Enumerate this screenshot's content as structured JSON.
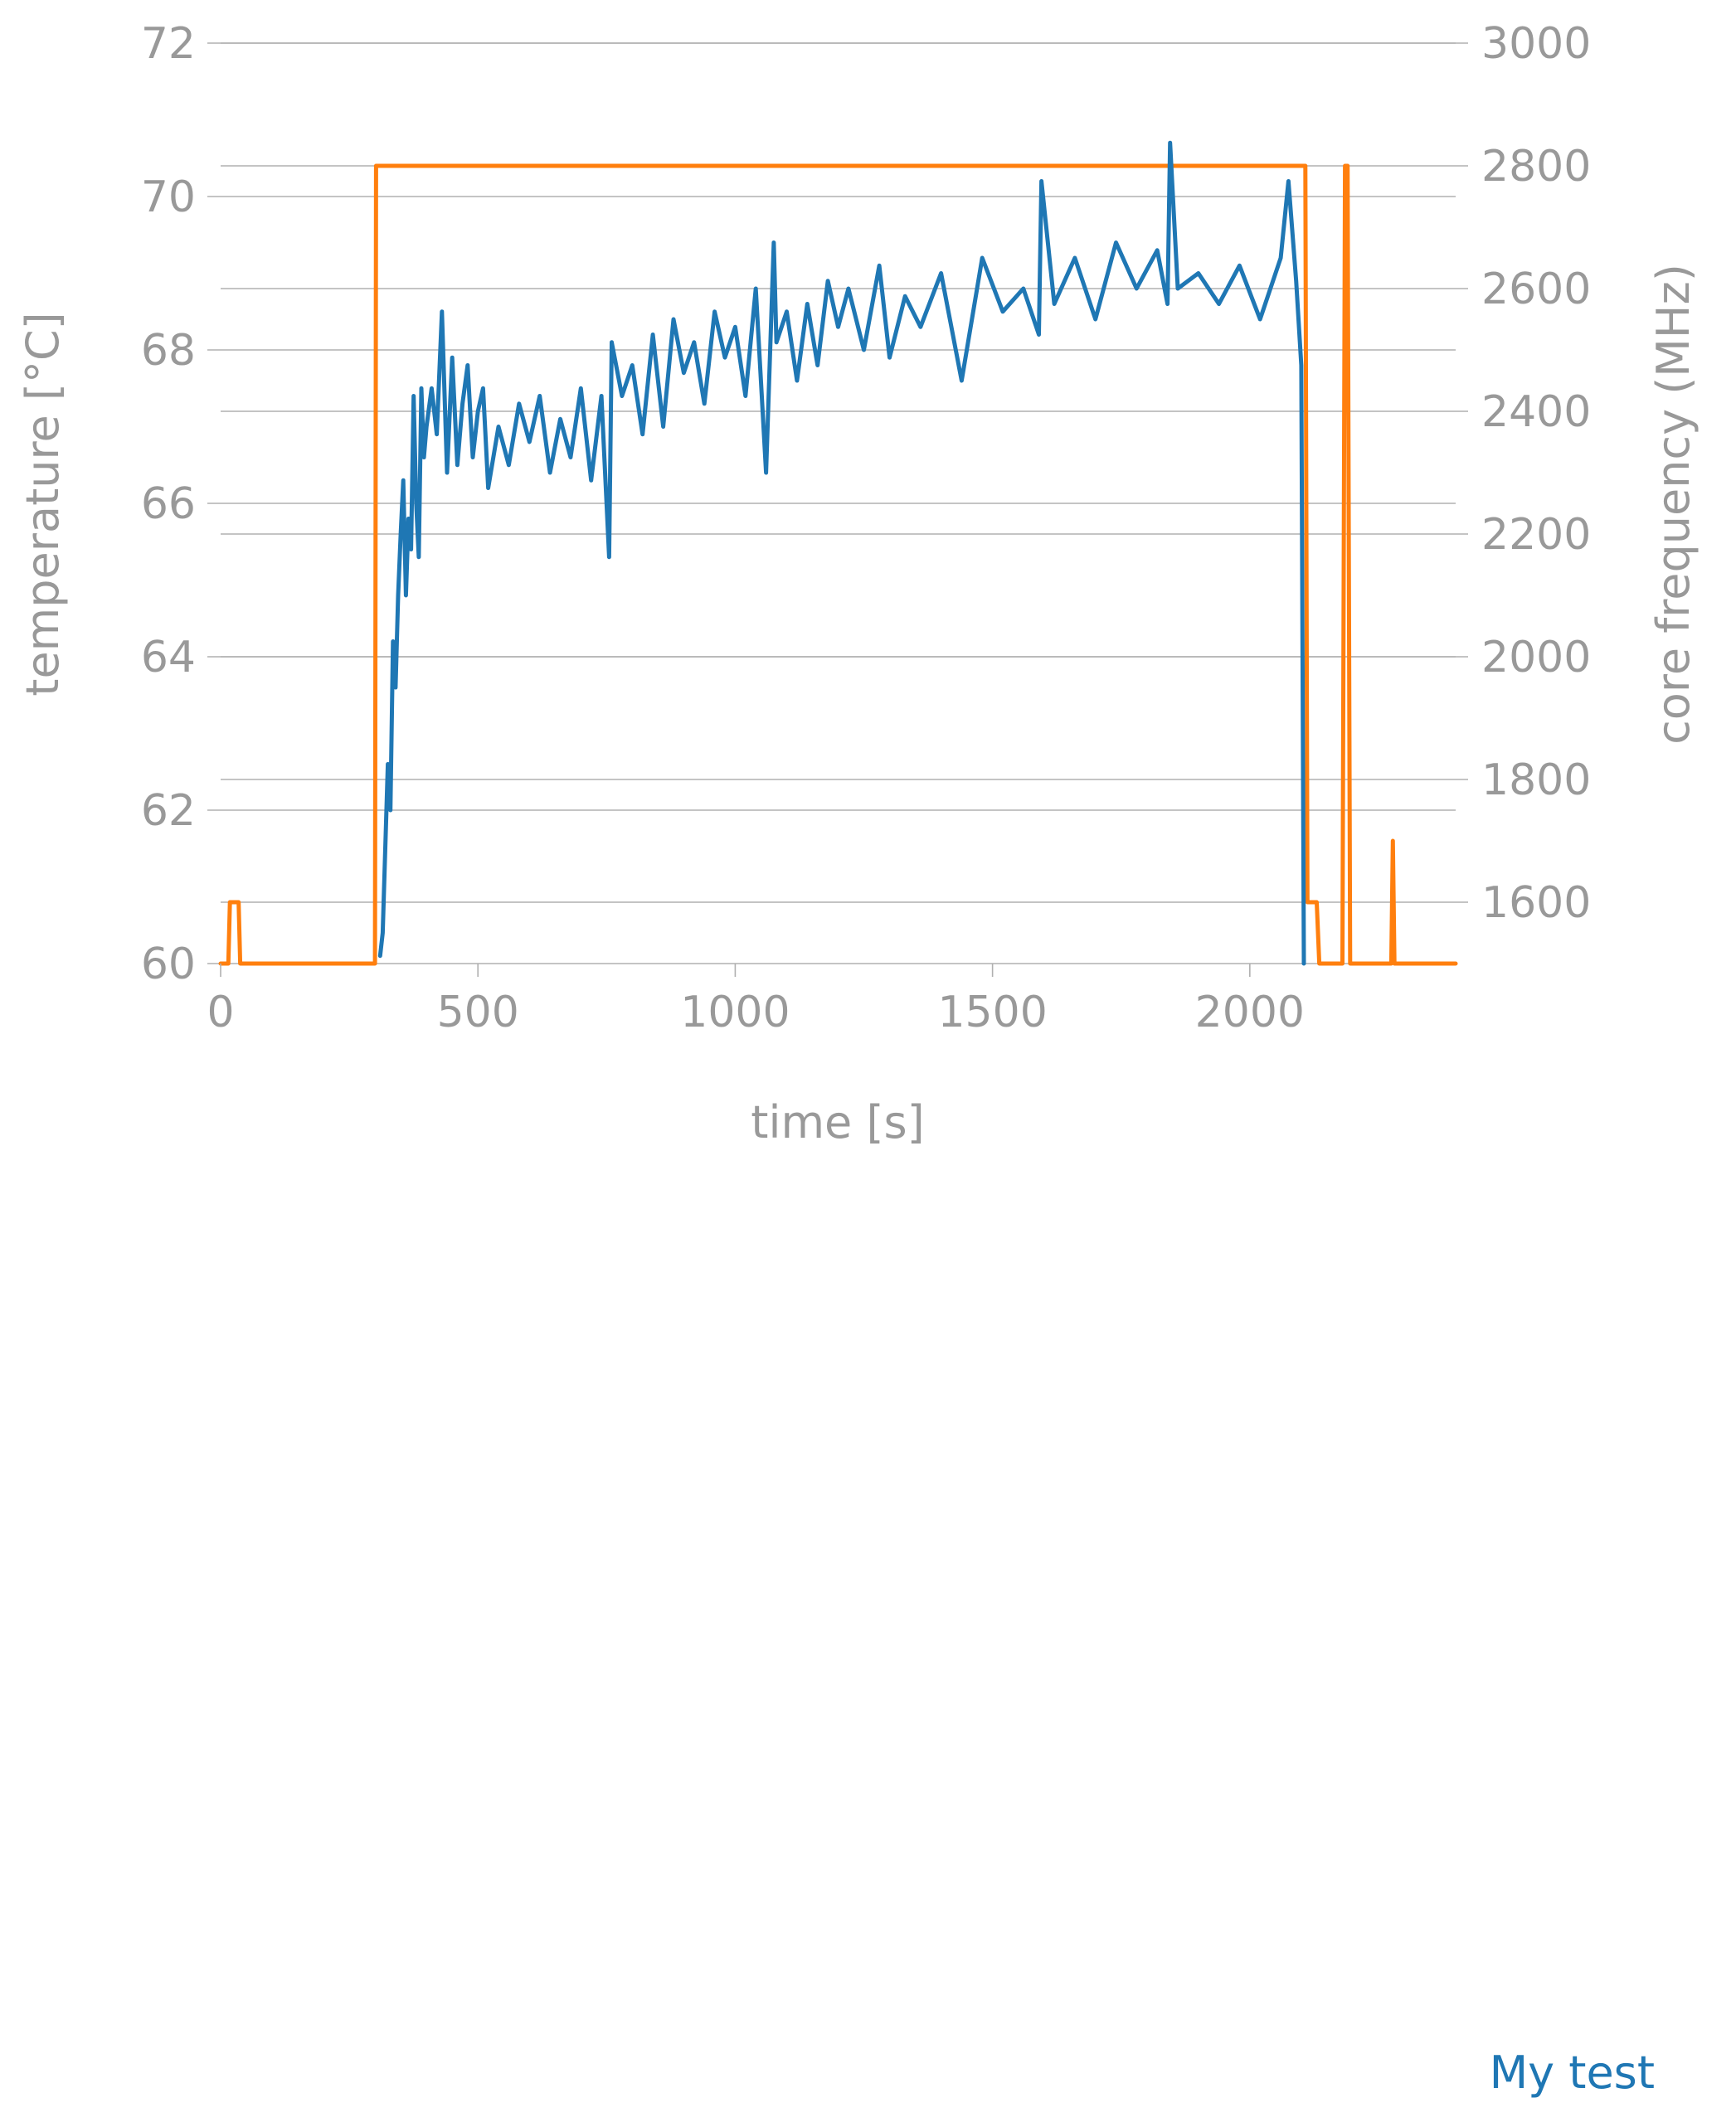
{
  "chart_data": {
    "type": "line",
    "xlabel": "time [s]",
    "ylabel_left": "temperature [°C]",
    "ylabel_right": "core frequency (MHz)",
    "xlim": [
      0,
      2400
    ],
    "ylim_left": [
      60,
      72
    ],
    "ylim_right": [
      1500,
      3000
    ],
    "x_ticks": [
      "0",
      "500",
      "1000",
      "1500",
      "2000"
    ],
    "y_left_ticks": [
      "60",
      "62",
      "64",
      "66",
      "68",
      "70",
      "72"
    ],
    "y_right_ticks": [
      "1600",
      "1800",
      "2000",
      "2200",
      "2400",
      "2600",
      "2800",
      "3000"
    ],
    "grid": true,
    "colors": {
      "temperature": "#1f77b4",
      "frequency": "#ff7f0e",
      "text": "#999999",
      "grid": "#b0b0b0"
    },
    "series": [
      {
        "name": "My test",
        "axis": "left",
        "color": "#1f77b4",
        "x": [
          310,
          315,
          320,
          325,
          330,
          335,
          340,
          345,
          350,
          355,
          360,
          365,
          370,
          375,
          380,
          385,
          390,
          395,
          400,
          410,
          420,
          430,
          440,
          450,
          460,
          470,
          480,
          490,
          500,
          510,
          520,
          540,
          560,
          580,
          600,
          620,
          640,
          660,
          680,
          700,
          720,
          740,
          755,
          760,
          780,
          800,
          820,
          840,
          860,
          880,
          900,
          920,
          940,
          960,
          980,
          1000,
          1020,
          1040,
          1060,
          1075,
          1080,
          1100,
          1120,
          1140,
          1160,
          1180,
          1200,
          1220,
          1250,
          1280,
          1300,
          1330,
          1360,
          1400,
          1440,
          1480,
          1520,
          1560,
          1590,
          1595,
          1620,
          1660,
          1700,
          1740,
          1780,
          1820,
          1840,
          1845,
          1860,
          1900,
          1940,
          1980,
          2020,
          2060,
          2075,
          2090,
          2100,
          2105
        ],
        "values": [
          60.1,
          60.4,
          61.5,
          62.6,
          62.0,
          64.2,
          63.6,
          64.8,
          65.6,
          66.3,
          64.8,
          65.8,
          65.4,
          67.4,
          66.0,
          65.3,
          67.5,
          66.6,
          67.0,
          67.5,
          66.9,
          68.5,
          66.4,
          67.9,
          66.5,
          67.3,
          67.8,
          66.6,
          67.2,
          67.5,
          66.2,
          67.0,
          66.5,
          67.3,
          66.8,
          67.4,
          66.4,
          67.1,
          66.6,
          67.5,
          66.3,
          67.4,
          65.3,
          68.1,
          67.4,
          67.8,
          66.9,
          68.2,
          67.0,
          68.4,
          67.7,
          68.1,
          67.3,
          68.5,
          67.9,
          68.3,
          67.4,
          68.8,
          66.4,
          69.4,
          68.1,
          68.5,
          67.6,
          68.6,
          67.8,
          68.9,
          68.3,
          68.8,
          68.0,
          69.1,
          67.9,
          68.7,
          68.3,
          69.0,
          67.6,
          69.2,
          68.5,
          68.8,
          68.2,
          70.2,
          68.6,
          69.2,
          68.4,
          69.4,
          68.8,
          69.3,
          68.6,
          70.7,
          68.8,
          69.0,
          68.6,
          69.1,
          68.4,
          69.2,
          70.2,
          68.9,
          67.8,
          60.0
        ]
      },
      {
        "name": "",
        "axis": "right",
        "color": "#ff7f0e",
        "x": [
          0,
          15,
          18,
          35,
          38,
          300,
          302,
          2108,
          2112,
          2130,
          2135,
          2180,
          2185,
          2190,
          2195,
          2275,
          2278,
          2281,
          2400
        ],
        "values": [
          1500,
          1500,
          1600,
          1600,
          1500,
          1500,
          2800,
          2800,
          1600,
          1600,
          1500,
          1500,
          2800,
          2800,
          1500,
          1500,
          1700,
          1500,
          1500
        ]
      }
    ]
  }
}
